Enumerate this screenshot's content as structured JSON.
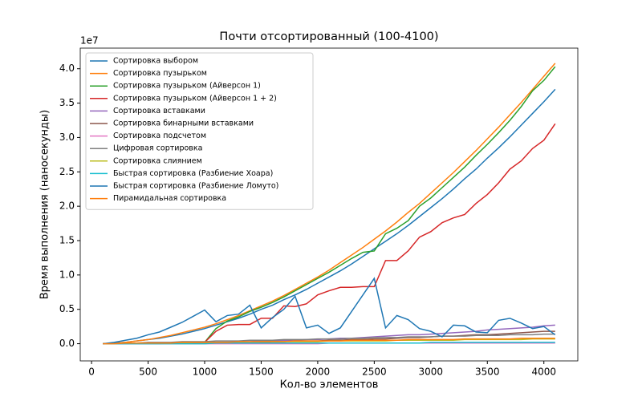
{
  "chart_data": {
    "type": "line",
    "title": "Почти отсортированный (100-4100)",
    "xlabel": "Кол-во элементов",
    "ylabel": "Время выполнения (наносекунды)",
    "y_offset_label": "1e7",
    "legend": "upper left",
    "x": [
      100,
      200,
      300,
      400,
      500,
      600,
      700,
      800,
      900,
      1000,
      1100,
      1200,
      1300,
      1400,
      1500,
      1600,
      1700,
      1800,
      1900,
      2000,
      2100,
      2200,
      2300,
      2400,
      2500,
      2600,
      2700,
      2800,
      2900,
      3000,
      3100,
      3200,
      3300,
      3400,
      3500,
      3600,
      3700,
      3800,
      3900,
      4000,
      4100
    ],
    "xlim": [
      -100,
      4300
    ],
    "xticks": [
      0,
      500,
      1000,
      1500,
      2000,
      2500,
      3000,
      3500,
      4000
    ],
    "ylim": [
      -0.25,
      4.3
    ],
    "yticks": [
      {
        "value": 0,
        "label": "0.0"
      },
      {
        "value": 0.5,
        "label": "0.5"
      },
      {
        "value": 1,
        "label": "1.0"
      },
      {
        "value": 1.5,
        "label": "1.5"
      },
      {
        "value": 2,
        "label": "2.0"
      },
      {
        "value": 2.5,
        "label": "2.5"
      },
      {
        "value": 3,
        "label": "3.0"
      },
      {
        "value": 3.5,
        "label": "3.5"
      },
      {
        "value": 4,
        "label": "4.0"
      }
    ],
    "series": [
      {
        "name": "Сортировка выбором",
        "color": "#1f77b4",
        "values": [
          0,
          0.01,
          0.02,
          0.04,
          0.06,
          0.08,
          0.11,
          0.14,
          0.18,
          0.22,
          0.27,
          0.32,
          0.37,
          0.43,
          0.5,
          0.56,
          0.64,
          0.71,
          0.79,
          0.88,
          0.97,
          1.06,
          1.16,
          1.27,
          1.38,
          1.49,
          1.6,
          1.72,
          1.85,
          1.98,
          2.11,
          2.25,
          2.4,
          2.54,
          2.7,
          2.85,
          3.01,
          3.18,
          3.35,
          3.52,
          3.7
        ]
      },
      {
        "name": "Сортировка пузырьком",
        "color": "#ff7f0e",
        "values": [
          0,
          0.01,
          0.02,
          0.04,
          0.06,
          0.09,
          0.12,
          0.16,
          0.2,
          0.24,
          0.29,
          0.35,
          0.41,
          0.48,
          0.55,
          0.62,
          0.7,
          0.79,
          0.88,
          0.97,
          1.07,
          1.18,
          1.29,
          1.4,
          1.52,
          1.64,
          1.77,
          1.91,
          2.04,
          2.19,
          2.34,
          2.49,
          2.65,
          2.81,
          2.98,
          3.15,
          3.33,
          3.51,
          3.7,
          3.89,
          4.08
        ]
      },
      {
        "name": "Сортировка пузырьком (Айверсон 1)",
        "color": "#2ca02c",
        "values": [
          0,
          0,
          0,
          0.01,
          0.01,
          0.01,
          0.01,
          0.01,
          0.01,
          0.02,
          0.22,
          0.33,
          0.39,
          0.47,
          0.53,
          0.6,
          0.68,
          0.77,
          0.86,
          0.95,
          1.04,
          1.14,
          1.24,
          1.33,
          1.35,
          1.6,
          1.68,
          1.79,
          2.0,
          2.12,
          2.27,
          2.42,
          2.57,
          2.74,
          2.9,
          3.07,
          3.25,
          3.45,
          3.68,
          3.83,
          4.03
        ]
      },
      {
        "name": "Сортировка пузырьком (Айверсон 1 + 2)",
        "color": "#d62728",
        "values": [
          0,
          0,
          0,
          0.01,
          0.01,
          0.01,
          0.01,
          0.02,
          0.02,
          0.02,
          0.18,
          0.27,
          0.28,
          0.28,
          0.37,
          0.37,
          0.55,
          0.54,
          0.58,
          0.71,
          0.77,
          0.82,
          0.82,
          0.83,
          0.83,
          1.21,
          1.21,
          1.35,
          1.55,
          1.63,
          1.76,
          1.83,
          1.88,
          2.04,
          2.17,
          2.34,
          2.54,
          2.66,
          2.84,
          2.96,
          3.2
        ]
      },
      {
        "name": "Сортировка вставками",
        "color": "#9467bd",
        "values": [
          0,
          0,
          0,
          0,
          0,
          0.01,
          0.01,
          0.01,
          0.01,
          0.02,
          0.02,
          0.02,
          0.03,
          0.03,
          0.04,
          0.04,
          0.05,
          0.05,
          0.06,
          0.06,
          0.07,
          0.08,
          0.08,
          0.09,
          0.1,
          0.11,
          0.12,
          0.13,
          0.13,
          0.14,
          0.15,
          0.16,
          0.17,
          0.18,
          0.2,
          0.21,
          0.22,
          0.23,
          0.24,
          0.26,
          0.27
        ]
      },
      {
        "name": "Сортировка бинарными вставками",
        "color": "#8c564b",
        "values": [
          0,
          0,
          0,
          0,
          0,
          0,
          0.01,
          0.01,
          0.01,
          0.01,
          0.01,
          0.02,
          0.02,
          0.02,
          0.02,
          0.03,
          0.03,
          0.04,
          0.04,
          0.04,
          0.05,
          0.05,
          0.06,
          0.06,
          0.07,
          0.07,
          0.08,
          0.09,
          0.09,
          0.1,
          0.11,
          0.11,
          0.12,
          0.13,
          0.13,
          0.14,
          0.15,
          0.16,
          0.17,
          0.18,
          0.18
        ]
      },
      {
        "name": "Сортировка подсчетом",
        "color": "#e377c2",
        "values": [
          0,
          0,
          0,
          0,
          0,
          0,
          0,
          0,
          0,
          0,
          0,
          0,
          0,
          0,
          0,
          0,
          0,
          0,
          0,
          0,
          0.01,
          0.01,
          0.01,
          0.01,
          0.01,
          0.01,
          0.01,
          0.01,
          0.01,
          0.01,
          0.01,
          0.01,
          0.01,
          0.01,
          0.01,
          0.01,
          0.01,
          0.01,
          0.01,
          0.01,
          0.01
        ]
      },
      {
        "name": "Цифровая сортировка",
        "color": "#7f7f7f",
        "values": [
          0,
          0.01,
          0.01,
          0.01,
          0.02,
          0.02,
          0.02,
          0.03,
          0.03,
          0.03,
          0.04,
          0.04,
          0.04,
          0.05,
          0.05,
          0.05,
          0.06,
          0.06,
          0.06,
          0.07,
          0.07,
          0.07,
          0.08,
          0.08,
          0.09,
          0.09,
          0.09,
          0.1,
          0.1,
          0.1,
          0.11,
          0.11,
          0.11,
          0.12,
          0.12,
          0.12,
          0.13,
          0.13,
          0.13,
          0.14,
          0.14
        ]
      },
      {
        "name": "Сортировка слиянием",
        "color": "#bcbd22",
        "values": [
          0,
          0,
          0.01,
          0.01,
          0.01,
          0.01,
          0.01,
          0.01,
          0.02,
          0.02,
          0.02,
          0.02,
          0.02,
          0.02,
          0.03,
          0.03,
          0.03,
          0.03,
          0.03,
          0.03,
          0.04,
          0.04,
          0.04,
          0.04,
          0.04,
          0.04,
          0.05,
          0.05,
          0.05,
          0.05,
          0.05,
          0.05,
          0.06,
          0.06,
          0.06,
          0.06,
          0.06,
          0.06,
          0.07,
          0.07,
          0.07
        ]
      },
      {
        "name": "Быстрая сортировка (Разбиение Хоара)",
        "color": "#17becf",
        "values": [
          0,
          0,
          0,
          0,
          0,
          0,
          0,
          0,
          0,
          0,
          0.01,
          0.01,
          0.01,
          0.01,
          0.01,
          0.01,
          0.01,
          0.01,
          0.01,
          0.01,
          0.01,
          0.01,
          0.01,
          0.01,
          0.01,
          0.01,
          0.01,
          0.01,
          0.01,
          0.02,
          0.02,
          0.02,
          0.02,
          0.02,
          0.02,
          0.02,
          0.02,
          0.02,
          0.02,
          0.02,
          0.02
        ]
      },
      {
        "name": "Быстрая сортировка (Разбиение Ломуто)",
        "color": "#1f77b4",
        "values": [
          0,
          0.02,
          0.05,
          0.08,
          0.13,
          0.17,
          0.24,
          0.31,
          0.4,
          0.49,
          0.32,
          0.41,
          0.43,
          0.56,
          0.23,
          0.38,
          0.5,
          0.69,
          0.23,
          0.27,
          0.15,
          0.23,
          0.47,
          0.71,
          0.95,
          0.23,
          0.41,
          0.35,
          0.22,
          0.18,
          0.1,
          0.27,
          0.26,
          0.17,
          0.16,
          0.34,
          0.37,
          0.3,
          0.22,
          0.25,
          0.13
        ]
      },
      {
        "name": "Пирамидальная сортировка",
        "color": "#ff7f0e",
        "values": [
          0,
          0,
          0.01,
          0.01,
          0.01,
          0.01,
          0.01,
          0.02,
          0.02,
          0.02,
          0.02,
          0.02,
          0.03,
          0.03,
          0.03,
          0.03,
          0.03,
          0.04,
          0.04,
          0.04,
          0.04,
          0.04,
          0.05,
          0.05,
          0.05,
          0.05,
          0.05,
          0.06,
          0.06,
          0.06,
          0.06,
          0.06,
          0.07,
          0.07,
          0.07,
          0.07,
          0.07,
          0.08,
          0.08,
          0.08,
          0.08
        ]
      }
    ]
  }
}
